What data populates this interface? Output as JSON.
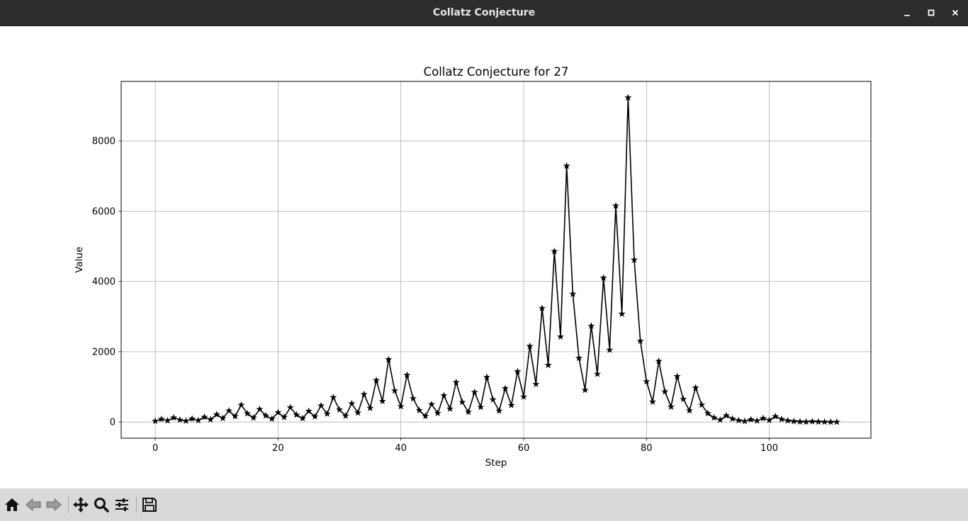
{
  "window": {
    "title": "Collatz Conjecture"
  },
  "toolbar": {
    "buttons": [
      {
        "name": "home",
        "icon": "home-icon"
      },
      {
        "name": "back",
        "icon": "back-arrow-icon"
      },
      {
        "name": "forward",
        "icon": "forward-arrow-icon"
      },
      {
        "name": "pan",
        "icon": "move-icon"
      },
      {
        "name": "zoom",
        "icon": "magnifier-icon"
      },
      {
        "name": "configure-subplots",
        "icon": "sliders-icon"
      },
      {
        "name": "save",
        "icon": "floppy-disk-icon"
      }
    ]
  },
  "chart_data": {
    "type": "line",
    "title": "Collatz Conjecture for 27",
    "xlabel": "Step",
    "ylabel": "Value",
    "xlim": [
      -5.55,
      116.55
    ],
    "ylim": [
      -459.7,
      9693.7
    ],
    "xticks": [
      0,
      20,
      40,
      60,
      80,
      100
    ],
    "yticks": [
      0,
      2000,
      4000,
      6000,
      8000
    ],
    "grid": true,
    "line_color": "#000000",
    "marker": "star",
    "x_start": 0,
    "values": [
      27,
      82,
      41,
      124,
      62,
      31,
      94,
      47,
      142,
      71,
      214,
      107,
      322,
      161,
      484,
      242,
      121,
      364,
      182,
      91,
      274,
      137,
      412,
      206,
      103,
      310,
      155,
      466,
      233,
      700,
      350,
      175,
      526,
      263,
      790,
      395,
      1186,
      593,
      1780,
      890,
      445,
      1336,
      668,
      334,
      167,
      502,
      251,
      754,
      377,
      1132,
      566,
      283,
      850,
      425,
      1276,
      638,
      319,
      958,
      479,
      1438,
      719,
      2158,
      1079,
      3238,
      1619,
      4858,
      2429,
      7288,
      3644,
      1822,
      911,
      2734,
      1367,
      4102,
      2051,
      6154,
      3077,
      9232,
      4616,
      2308,
      1154,
      577,
      1732,
      866,
      433,
      1300,
      650,
      325,
      976,
      488,
      244,
      122,
      61,
      184,
      92,
      46,
      23,
      70,
      35,
      106,
      53,
      160,
      80,
      40,
      20,
      10,
      5,
      16,
      8,
      4,
      2,
      1
    ]
  }
}
